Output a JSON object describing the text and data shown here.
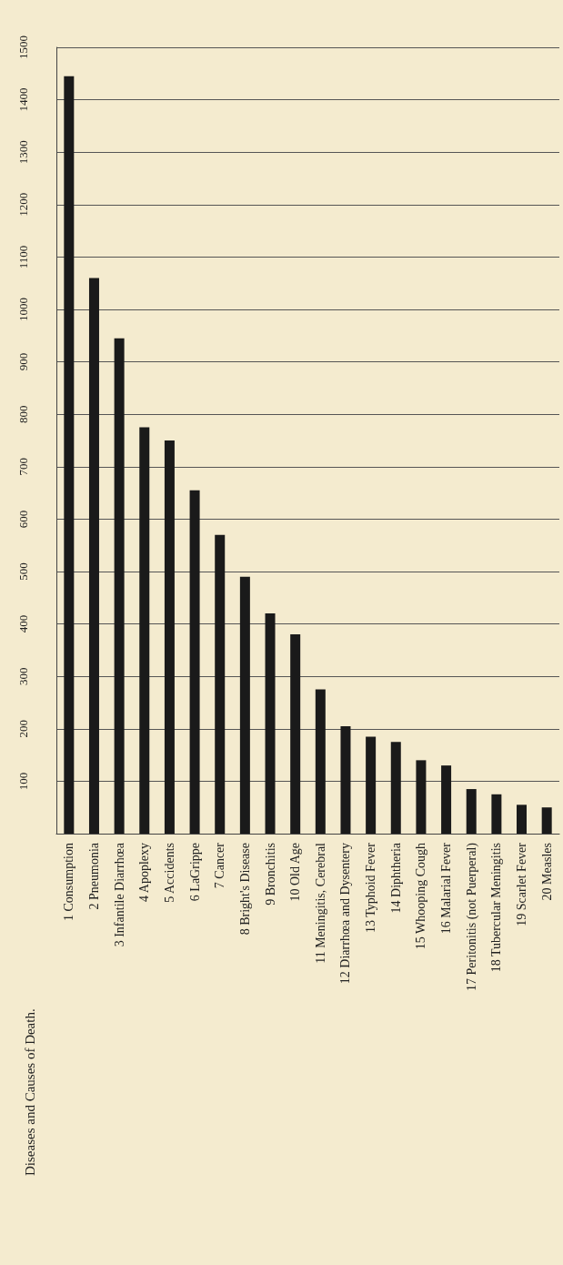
{
  "chart_data": {
    "type": "bar",
    "title": "Diseases and Causes of Death.",
    "categories": [
      "1 Consumption",
      "2 Pneumonia",
      "3 Infantile Diarrhœa",
      "4 Apoplexy",
      "5 Accidents",
      "6 LaGrippe",
      "7 Cancer",
      "8 Bright's Disease",
      "9 Bronchitis",
      "10 Old Age",
      "11 Meningitis, Cerebral",
      "12 Diarrhœa and Dysentery",
      "13 Typhoid Fever",
      "14 Diphtheria",
      "15 Whooping Cough",
      "16 Malarial Fever",
      "17 Peritonitis (not Puerperal)",
      "18 Tubercular Meningitis",
      "19 Scarlet Fever",
      "20 Measles"
    ],
    "values": [
      1445,
      1060,
      945,
      775,
      750,
      655,
      570,
      490,
      420,
      380,
      275,
      205,
      185,
      175,
      140,
      130,
      85,
      75,
      55,
      50
    ],
    "color": "#1a1a1a",
    "ylim": [
      0,
      1500
    ],
    "yticks": [
      100,
      200,
      300,
      400,
      500,
      600,
      700,
      800,
      900,
      1000,
      1100,
      1200,
      1300,
      1400,
      1500
    ],
    "grid": "y"
  }
}
